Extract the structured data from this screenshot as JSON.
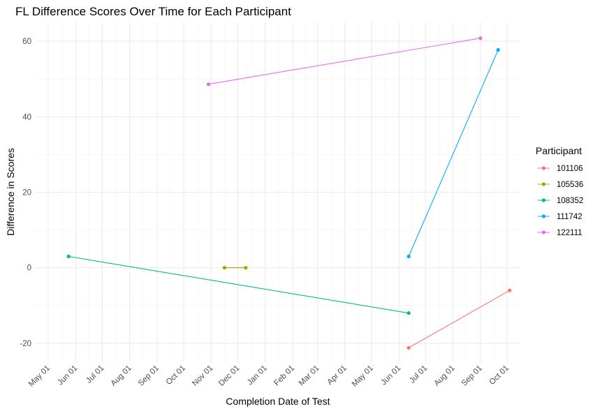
{
  "chart_data": {
    "type": "line",
    "title": "FL Difference Scores Over Time for Each Participant",
    "xlabel": "Completion Date of Test",
    "ylabel": "Difference in Scores",
    "x_axis_type": "date",
    "xlim": [
      "2022-04-16",
      "2023-10-16"
    ],
    "ylim": [
      -25,
      65
    ],
    "x_ticks": [
      "2022-05-01",
      "2022-06-01",
      "2022-07-01",
      "2022-08-01",
      "2022-09-01",
      "2022-10-01",
      "2022-11-01",
      "2022-12-01",
      "2023-01-01",
      "2023-02-01",
      "2023-03-01",
      "2023-04-01",
      "2023-05-01",
      "2023-06-01",
      "2023-07-01",
      "2023-08-01",
      "2023-09-01",
      "2023-10-01"
    ],
    "x_tick_labels": [
      "May 01",
      "Jun 01",
      "Jul 01",
      "Aug 01",
      "Sep 01",
      "Oct 01",
      "Nov 01",
      "Dec 01",
      "Jan 01",
      "Feb 01",
      "Mar 01",
      "Apr 01",
      "May 01",
      "Jun 01",
      "Jul 01",
      "Aug 01",
      "Sep 01",
      "Oct 01"
    ],
    "y_ticks": [
      -20,
      0,
      20,
      40,
      60
    ],
    "y_tick_labels": [
      "-20",
      "0",
      "20",
      "40",
      "60"
    ],
    "grid": true,
    "legend": {
      "title": "Participant",
      "position": "right"
    },
    "series": [
      {
        "name": "101106",
        "color": "#F8766D",
        "points": [
          {
            "x": "2023-06-12",
            "y": -21.2
          },
          {
            "x": "2023-10-04",
            "y": -6
          }
        ]
      },
      {
        "name": "105536",
        "color": "#A3A500",
        "points": [
          {
            "x": "2022-11-16",
            "y": 0
          },
          {
            "x": "2022-12-10",
            "y": 0
          }
        ]
      },
      {
        "name": "108352",
        "color": "#00BF7D",
        "points": [
          {
            "x": "2022-05-24",
            "y": 3
          },
          {
            "x": "2023-06-12",
            "y": -12
          }
        ]
      },
      {
        "name": "111742",
        "color": "#00B0F6",
        "points": [
          {
            "x": "2023-06-12",
            "y": 3
          },
          {
            "x": "2023-09-21",
            "y": 57.7
          }
        ]
      },
      {
        "name": "122111",
        "color": "#E76BF3",
        "points": [
          {
            "x": "2022-10-29",
            "y": 48.6
          },
          {
            "x": "2023-09-01",
            "y": 60.8
          }
        ]
      }
    ]
  }
}
